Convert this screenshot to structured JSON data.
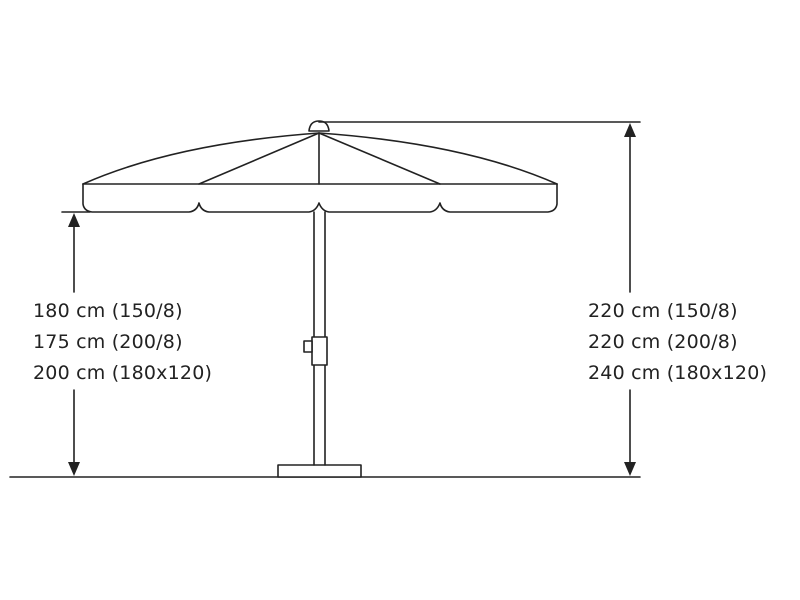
{
  "colors": {
    "line": "#222222",
    "background": "#ffffff"
  },
  "left_dimension": {
    "lines": [
      "180 cm (150/8)",
      "175 cm (200/8)",
      "200 cm (180x120)"
    ]
  },
  "right_dimension": {
    "lines": [
      "220 cm (150/8)",
      "220 cm (200/8)",
      "240 cm (180x120)"
    ]
  }
}
